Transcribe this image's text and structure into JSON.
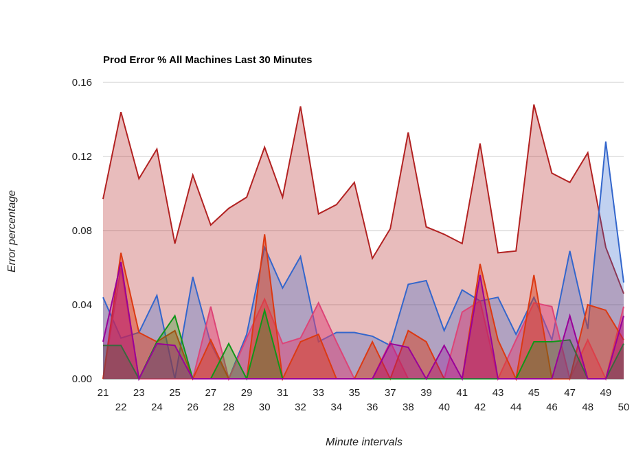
{
  "chart_data": {
    "type": "area",
    "title": "Prod Error % All Machines Last 30 Minutes",
    "xlabel": "Minute intervals",
    "ylabel": "Error percentage",
    "ylim": [
      0,
      0.16
    ],
    "yticks": [
      "0.00",
      "0.04",
      "0.08",
      "0.12",
      "0.16"
    ],
    "ytick_values": [
      0,
      0.04,
      0.08,
      0.12,
      0.16
    ],
    "grid": true,
    "legend": "none",
    "categories": [
      "21",
      "22",
      "23",
      "24",
      "25",
      "26",
      "27",
      "28",
      "29",
      "30",
      "31",
      "32",
      "33",
      "34",
      "35",
      "36",
      "37",
      "38",
      "39",
      "40",
      "41",
      "42",
      "43",
      "44",
      "45",
      "46",
      "47",
      "48",
      "49",
      "50"
    ],
    "series": [
      {
        "name": "dark-red",
        "color": "#b22222",
        "fill_opacity": 0.3,
        "values": [
          0.097,
          0.144,
          0.108,
          0.124,
          0.073,
          0.11,
          0.083,
          0.092,
          0.098,
          0.125,
          0.098,
          0.147,
          0.089,
          0.094,
          0.106,
          0.065,
          0.081,
          0.133,
          0.082,
          0.078,
          0.073,
          0.127,
          0.068,
          0.069,
          0.148,
          0.111,
          0.106,
          0.122,
          0.071,
          0.046
        ]
      },
      {
        "name": "blue",
        "color": "#3366cc",
        "fill_opacity": 0.3,
        "values": [
          0.044,
          0.022,
          0.025,
          0.045,
          0.0,
          0.055,
          0.019,
          0.0,
          0.024,
          0.071,
          0.049,
          0.066,
          0.02,
          0.025,
          0.025,
          0.023,
          0.018,
          0.051,
          0.053,
          0.026,
          0.048,
          0.042,
          0.044,
          0.024,
          0.044,
          0.021,
          0.069,
          0.027,
          0.128,
          0.052
        ]
      },
      {
        "name": "pink",
        "color": "#dd4477",
        "fill_opacity": 0.5,
        "values": [
          0.0,
          0.06,
          0.0,
          0.0,
          0.0,
          0.0,
          0.039,
          0.0,
          0.022,
          0.043,
          0.019,
          0.022,
          0.041,
          0.02,
          0.0,
          0.0,
          0.02,
          0.0,
          0.0,
          0.0,
          0.036,
          0.042,
          0.0,
          0.021,
          0.041,
          0.039,
          0.0,
          0.021,
          0.0,
          0.039
        ]
      },
      {
        "name": "orange",
        "color": "#dc3912",
        "fill_opacity": 0.45,
        "values": [
          0.0,
          0.068,
          0.025,
          0.02,
          0.026,
          0.0,
          0.021,
          0.0,
          0.0,
          0.078,
          0.0,
          0.02,
          0.024,
          0.0,
          0.0,
          0.02,
          0.0,
          0.026,
          0.02,
          0.0,
          0.0,
          0.062,
          0.021,
          0.0,
          0.056,
          0.0,
          0.0,
          0.04,
          0.037,
          0.021
        ]
      },
      {
        "name": "green",
        "color": "#109618",
        "fill_opacity": 0.3,
        "values": [
          0.018,
          0.018,
          0.0,
          0.02,
          0.034,
          0.0,
          0.0,
          0.019,
          0.0,
          0.037,
          0.0,
          0.0,
          0.0,
          0.0,
          0.0,
          0.0,
          0.0,
          0.0,
          0.0,
          0.0,
          0.0,
          0.0,
          0.0,
          0.0,
          0.02,
          0.02,
          0.021,
          0.0,
          0.0,
          0.019
        ]
      },
      {
        "name": "purple",
        "color": "#990099",
        "fill_opacity": 0.3,
        "values": [
          0.02,
          0.063,
          0.0,
          0.019,
          0.018,
          0.0,
          0.0,
          0.0,
          0.0,
          0.0,
          0.0,
          0.0,
          0.0,
          0.0,
          0.0,
          0.0,
          0.019,
          0.017,
          0.0,
          0.018,
          0.0,
          0.056,
          0.0,
          0.0,
          0.0,
          0.0,
          0.034,
          0.0,
          0.0,
          0.034
        ]
      }
    ]
  }
}
